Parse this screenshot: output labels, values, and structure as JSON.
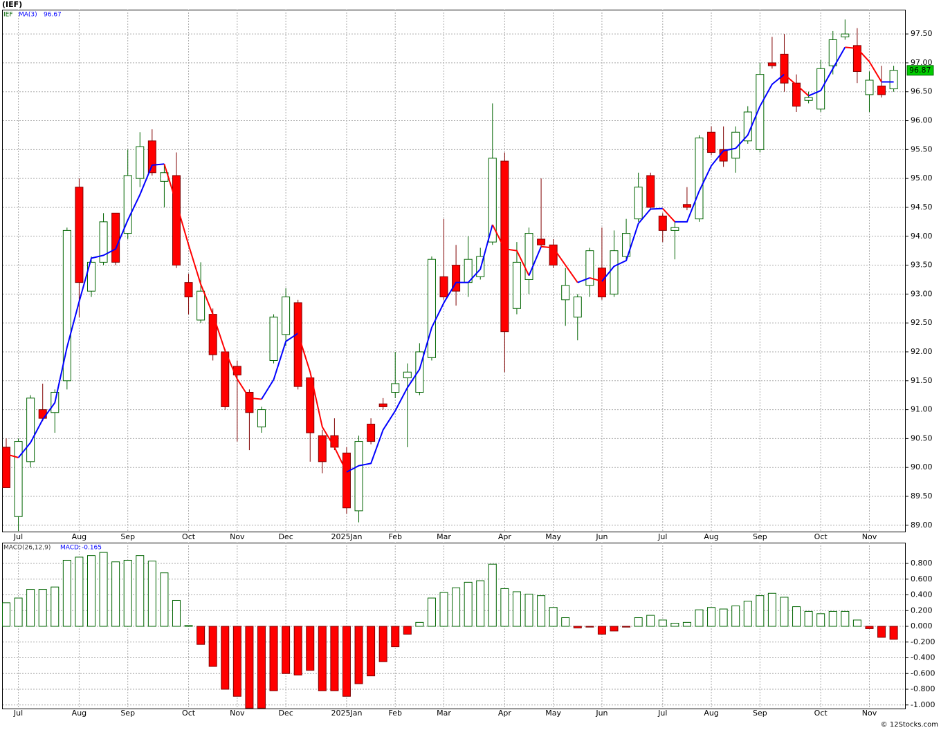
{
  "credit": "© 12Stocks.com",
  "chart_data": [
    {
      "type": "candlestick",
      "title": "(IEF)",
      "name": "IEF",
      "categories": [
        null,
        "Jul",
        null,
        null,
        null,
        null,
        "Aug",
        null,
        null,
        null,
        "Sep",
        null,
        null,
        null,
        null,
        "Oct",
        null,
        null,
        null,
        "Nov",
        null,
        null,
        null,
        "Dec",
        null,
        null,
        null,
        null,
        "2025Jan",
        null,
        null,
        null,
        "Feb",
        null,
        null,
        null,
        "Mar",
        null,
        null,
        null,
        null,
        "Apr",
        null,
        null,
        null,
        "May",
        null,
        null,
        null,
        "Jun",
        null,
        null,
        null,
        null,
        "Jul",
        null,
        null,
        null,
        "Aug",
        null,
        null,
        null,
        "Sep",
        null,
        null,
        null,
        null,
        "Oct",
        null,
        null,
        null,
        "Nov",
        null,
        null
      ],
      "open": [
        90.35,
        89.15,
        90.1,
        91.0,
        90.95,
        91.5,
        94.85,
        93.05,
        93.55,
        94.4,
        94.05,
        95.0,
        95.65,
        94.95,
        95.05,
        93.2,
        92.55,
        92.65,
        92.0,
        91.75,
        91.3,
        90.7,
        91.85,
        92.3,
        92.85,
        91.55,
        90.55,
        90.55,
        90.25,
        89.25,
        90.75,
        91.1,
        91.3,
        91.55,
        91.3,
        91.9,
        93.3,
        93.5,
        93.2,
        93.3,
        93.9,
        95.3,
        92.75,
        93.25,
        93.95,
        93.85,
        92.9,
        92.6,
        93.15,
        93.45,
        93.0,
        93.65,
        94.3,
        95.05,
        94.35,
        94.1,
        94.55,
        94.3,
        95.8,
        95.5,
        95.35,
        95.65,
        95.5,
        97.0,
        97.15,
        96.65,
        96.35,
        96.2,
        96.95,
        97.45,
        97.3,
        96.45,
        96.6,
        96.55
      ],
      "high": [
        90.5,
        90.5,
        91.25,
        91.45,
        91.35,
        94.15,
        95.0,
        93.65,
        94.4,
        94.4,
        95.5,
        95.8,
        95.85,
        95.25,
        95.45,
        93.35,
        93.55,
        92.75,
        92.05,
        91.85,
        91.35,
        91.05,
        92.65,
        93.1,
        92.9,
        91.55,
        90.65,
        90.85,
        90.35,
        90.55,
        90.85,
        91.2,
        92.0,
        91.8,
        92.15,
        93.65,
        94.3,
        93.85,
        94.0,
        93.8,
        96.3,
        95.45,
        93.9,
        94.15,
        95.0,
        93.95,
        93.45,
        93.0,
        93.8,
        94.15,
        94.1,
        94.3,
        95.1,
        95.1,
        94.4,
        94.25,
        94.85,
        95.75,
        95.9,
        95.9,
        95.9,
        96.25,
        97.0,
        97.45,
        97.5,
        96.8,
        96.5,
        97.05,
        97.55,
        97.75,
        97.6,
        96.85,
        96.95,
        96.95
      ],
      "low": [
        89.65,
        88.9,
        90.0,
        90.8,
        90.6,
        91.35,
        92.6,
        92.95,
        93.5,
        93.5,
        93.95,
        94.85,
        95.05,
        94.5,
        93.45,
        92.65,
        92.5,
        91.85,
        91.0,
        90.45,
        90.3,
        90.6,
        91.8,
        92.1,
        91.35,
        90.1,
        89.9,
        90.3,
        89.2,
        89.05,
        90.4,
        91.0,
        91.2,
        90.35,
        91.25,
        91.85,
        92.9,
        92.8,
        92.95,
        93.25,
        93.85,
        91.65,
        92.65,
        93.0,
        93.8,
        93.45,
        92.45,
        92.2,
        92.95,
        92.9,
        92.95,
        93.6,
        94.25,
        94.45,
        93.9,
        93.6,
        94.45,
        94.25,
        95.4,
        95.2,
        95.1,
        95.6,
        95.45,
        96.9,
        96.5,
        96.15,
        96.3,
        96.15,
        96.8,
        97.4,
        96.65,
        96.15,
        96.4,
        96.5
      ],
      "close": [
        89.65,
        90.45,
        91.2,
        90.85,
        91.3,
        94.1,
        93.2,
        93.55,
        94.25,
        93.55,
        95.05,
        95.55,
        95.1,
        95.1,
        93.5,
        92.95,
        93.05,
        91.95,
        91.05,
        91.6,
        90.95,
        91.0,
        92.6,
        92.95,
        91.4,
        90.6,
        90.1,
        90.35,
        89.3,
        90.45,
        90.45,
        91.05,
        91.45,
        91.65,
        92.0,
        93.6,
        92.95,
        93.05,
        93.6,
        93.65,
        95.35,
        92.35,
        93.55,
        94.05,
        93.85,
        93.5,
        93.15,
        92.95,
        93.75,
        92.95,
        93.75,
        94.05,
        94.85,
        94.5,
        94.1,
        94.15,
        94.5,
        95.7,
        95.45,
        95.3,
        95.8,
        96.15,
        96.8,
        96.95,
        96.65,
        96.25,
        96.4,
        96.9,
        97.4,
        97.5,
        96.85,
        96.7,
        96.45,
        96.87
      ],
      "up_color": "#006400",
      "down_color": "#ff0000",
      "last_color": "#00cc00",
      "ma": {
        "name": "MA(3)",
        "up_color": "#0000ff",
        "down_color": "#ff0000",
        "values": [
          90.23,
          90.17,
          90.43,
          90.83,
          91.12,
          92.08,
          92.87,
          93.62,
          93.67,
          93.78,
          94.28,
          94.72,
          95.23,
          95.25,
          94.57,
          93.85,
          93.17,
          92.65,
          92.02,
          91.53,
          91.2,
          91.18,
          91.52,
          92.18,
          92.32,
          91.65,
          90.7,
          90.35,
          89.92,
          90.03,
          90.07,
          90.65,
          90.98,
          91.38,
          91.7,
          92.42,
          92.85,
          93.2,
          93.2,
          93.43,
          94.2,
          93.78,
          93.75,
          93.32,
          93.82,
          93.8,
          93.5,
          93.2,
          93.28,
          93.22,
          93.48,
          93.58,
          94.22,
          94.47,
          94.48,
          94.25,
          94.25,
          94.78,
          95.22,
          95.48,
          95.52,
          95.75,
          96.25,
          96.63,
          96.8,
          96.62,
          96.43,
          96.52,
          96.9,
          97.27,
          97.25,
          97.02,
          96.67,
          96.67
        ]
      },
      "ylim": [
        88.89,
        97.92
      ],
      "yticks": [
        {
          "value": 89,
          "label": "89.00"
        },
        {
          "value": 89.5,
          "label": "89.50"
        },
        {
          "value": 90,
          "label": "90.00"
        },
        {
          "value": 90.5,
          "label": "90.50"
        },
        {
          "value": 91,
          "label": "91.00"
        },
        {
          "value": 91.5,
          "label": "91.50"
        },
        {
          "value": 92,
          "label": "92.00"
        },
        {
          "value": 92.5,
          "label": "92.50"
        },
        {
          "value": 93,
          "label": "93.00"
        },
        {
          "value": 93.5,
          "label": "93.50"
        },
        {
          "value": 94,
          "label": "94.00"
        },
        {
          "value": 94.5,
          "label": "94.50"
        },
        {
          "value": 95,
          "label": "95.00"
        },
        {
          "value": 95.5,
          "label": "95.50"
        },
        {
          "value": 96,
          "label": "96.00"
        },
        {
          "value": 96.5,
          "label": "96.50"
        },
        {
          "value": 97,
          "label": "97.00"
        },
        {
          "value": 97.5,
          "label": "97.50"
        }
      ],
      "grid": true
    },
    {
      "type": "bar",
      "name": "MACD(26,12,9)",
      "value_name": "MACD:",
      "categories": [
        null,
        "Jul",
        null,
        null,
        null,
        null,
        "Aug",
        null,
        null,
        null,
        "Sep",
        null,
        null,
        null,
        null,
        "Oct",
        null,
        null,
        null,
        "Nov",
        null,
        null,
        null,
        "Dec",
        null,
        null,
        null,
        null,
        "2025Jan",
        null,
        null,
        null,
        "Feb",
        null,
        null,
        null,
        "Mar",
        null,
        null,
        null,
        null,
        "Apr",
        null,
        null,
        null,
        "May",
        null,
        null,
        null,
        "Jun",
        null,
        null,
        null,
        null,
        "Jul",
        null,
        null,
        null,
        "Aug",
        null,
        null,
        null,
        "Sep",
        null,
        null,
        null,
        null,
        "Oct",
        null,
        null,
        null,
        "Nov",
        null,
        null
      ],
      "values": [
        0.3,
        0.36,
        0.47,
        0.47,
        0.5,
        0.84,
        0.88,
        0.9,
        0.94,
        0.82,
        0.84,
        0.9,
        0.83,
        0.68,
        0.33,
        0.01,
        -0.23,
        -0.51,
        -0.8,
        -0.89,
        -1.04,
        -1.04,
        -0.82,
        -0.6,
        -0.62,
        -0.56,
        -0.82,
        -0.82,
        -0.89,
        -0.73,
        -0.63,
        -0.45,
        -0.26,
        -0.1,
        0.05,
        0.36,
        0.43,
        0.49,
        0.56,
        0.58,
        0.79,
        0.48,
        0.44,
        0.41,
        0.39,
        0.24,
        0.11,
        -0.02,
        -0.01,
        -0.1,
        -0.06,
        -0.01,
        0.11,
        0.14,
        0.08,
        0.04,
        0.05,
        0.21,
        0.24,
        0.22,
        0.26,
        0.32,
        0.39,
        0.42,
        0.37,
        0.25,
        0.19,
        0.16,
        0.19,
        0.19,
        0.08,
        -0.03,
        -0.14,
        -0.165
      ],
      "pos_color": "#006400",
      "neg_color": "#ff0000",
      "ylim": [
        -1.046,
        1.064
      ],
      "yticks": [
        {
          "value": -1,
          "label": "-1.000"
        },
        {
          "value": -0.8,
          "label": "-0.800"
        },
        {
          "value": -0.6,
          "label": "-0.600"
        },
        {
          "value": -0.4,
          "label": "-0.400"
        },
        {
          "value": -0.2,
          "label": "-0.200"
        },
        {
          "value": 0,
          "label": "0.000"
        },
        {
          "value": 0.2,
          "label": "0.200"
        },
        {
          "value": 0.4,
          "label": "0.400"
        },
        {
          "value": 0.6,
          "label": "0.600"
        },
        {
          "value": 0.8,
          "label": "0.800"
        }
      ],
      "grid": true
    }
  ]
}
